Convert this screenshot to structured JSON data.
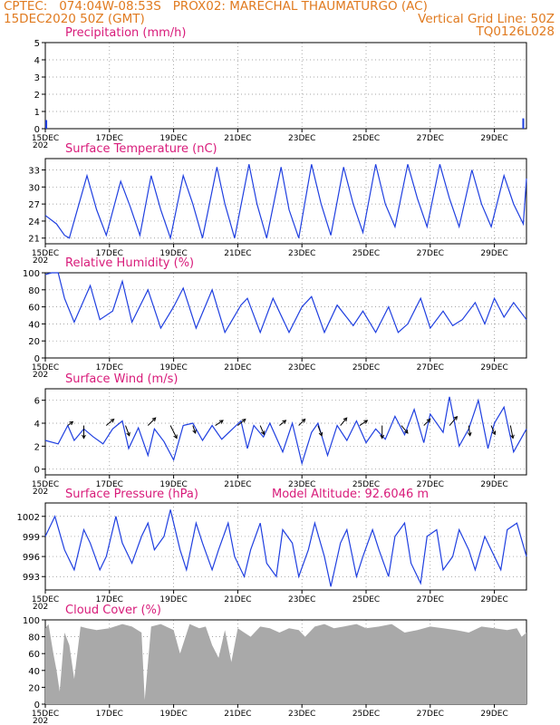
{
  "header": {
    "line1_left": "CPTEC:   074:04W-08:53S   PROX02: MARECHAL THAUMATURGO (AC)",
    "line2_left": "15DEC2020 50Z (GMT)",
    "line2_right": "Vertical Grid Line: 50Z",
    "line3_right": "TQ0126L028"
  },
  "colors": {
    "title": "#d81b7a",
    "header": "#e07a1f",
    "line": "#1f3fe0",
    "cloud": "#a9a9a9"
  },
  "x_axis": {
    "tick_labels": [
      "15DEC",
      "17DEC",
      "19DEC",
      "21DEC",
      "23DEC",
      "25DEC",
      "27DEC",
      "29DEC"
    ],
    "tick_days": [
      15,
      17,
      19,
      21,
      23,
      25,
      27,
      29
    ],
    "clipped_year_label": "202",
    "range_days": [
      15,
      30
    ]
  },
  "chart_data": [
    {
      "type": "bar",
      "title": "Precipitation (mm/h)",
      "ylim": [
        0,
        5
      ],
      "yticks": [
        0,
        1,
        2,
        3,
        4,
        5
      ],
      "series": [
        {
          "x": [
            15.03,
            29.9
          ],
          "values": [
            0.5,
            0.6
          ]
        }
      ]
    },
    {
      "type": "line",
      "title": "Surface Temperature (nC)",
      "ylim": [
        20,
        35
      ],
      "yticks": [
        21,
        24,
        27,
        30,
        33
      ],
      "series": [
        {
          "x": [
            15.0,
            15.35,
            15.6,
            15.75,
            16.3,
            16.6,
            16.9,
            17.35,
            17.65,
            17.95,
            18.3,
            18.6,
            18.9,
            19.3,
            19.6,
            19.9,
            20.35,
            20.6,
            20.9,
            21.35,
            21.6,
            21.9,
            22.35,
            22.6,
            22.9,
            23.3,
            23.6,
            23.9,
            24.3,
            24.6,
            24.9,
            25.3,
            25.6,
            25.9,
            26.3,
            26.6,
            26.9,
            27.3,
            27.6,
            27.9,
            28.3,
            28.6,
            28.9,
            29.3,
            29.6,
            29.9,
            30.0
          ],
          "values": [
            25,
            23.5,
            21.5,
            21,
            32,
            26,
            21.5,
            31,
            26.5,
            21.5,
            32,
            26,
            21,
            32,
            27,
            21,
            33.5,
            27,
            21,
            34,
            27,
            21,
            33.5,
            26,
            21,
            34,
            27,
            21.5,
            33.5,
            27,
            22,
            34,
            27,
            23,
            34,
            28,
            23,
            34,
            28,
            23,
            33,
            27,
            23,
            32,
            27,
            23.5,
            31.5
          ]
        }
      ]
    },
    {
      "type": "line",
      "title": "Relative Humidity (%)",
      "ylim": [
        0,
        100
      ],
      "yticks": [
        0,
        20,
        40,
        60,
        80,
        100
      ],
      "series": [
        {
          "x": [
            15.0,
            15.2,
            15.4,
            15.6,
            15.9,
            16.4,
            16.7,
            17.1,
            17.4,
            17.7,
            18.2,
            18.6,
            19.0,
            19.3,
            19.7,
            20.2,
            20.6,
            21.1,
            21.3,
            21.7,
            22.1,
            22.6,
            23.0,
            23.3,
            23.7,
            24.1,
            24.6,
            24.9,
            25.3,
            25.7,
            26.0,
            26.3,
            26.7,
            27.0,
            27.4,
            27.7,
            28.0,
            28.4,
            28.7,
            29.0,
            29.3,
            29.6,
            30.0
          ],
          "values": [
            98,
            100,
            100,
            70,
            42,
            85,
            45,
            55,
            90,
            42,
            80,
            35,
            60,
            82,
            35,
            80,
            30,
            62,
            70,
            30,
            70,
            30,
            60,
            72,
            30,
            62,
            38,
            55,
            30,
            60,
            30,
            40,
            70,
            35,
            55,
            38,
            45,
            65,
            40,
            70,
            48,
            65,
            45
          ]
        }
      ]
    },
    {
      "type": "line",
      "title": "Surface Wind (m/s)",
      "ylim": [
        -0.5,
        7
      ],
      "yticks": [
        0,
        2,
        4,
        6
      ],
      "series": [
        {
          "x": [
            15.0,
            15.4,
            15.7,
            15.9,
            16.2,
            16.5,
            16.8,
            17.1,
            17.4,
            17.6,
            17.9,
            18.2,
            18.4,
            18.7,
            19.0,
            19.3,
            19.6,
            19.9,
            20.2,
            20.5,
            20.8,
            21.1,
            21.3,
            21.5,
            21.8,
            22.0,
            22.4,
            22.7,
            23.0,
            23.3,
            23.5,
            23.8,
            24.1,
            24.4,
            24.7,
            25.0,
            25.3,
            25.6,
            25.9,
            26.2,
            26.5,
            26.8,
            27.0,
            27.4,
            27.6,
            27.9,
            28.2,
            28.5,
            28.8,
            29.0,
            29.3,
            29.6,
            30.0
          ],
          "values": [
            2.5,
            2.2,
            3.8,
            2.5,
            3.5,
            2.8,
            2.2,
            3.5,
            4.2,
            1.8,
            3.6,
            1.2,
            3.5,
            2.4,
            0.8,
            3.8,
            4.0,
            2.5,
            3.8,
            2.6,
            3.4,
            4.2,
            1.8,
            3.8,
            2.8,
            4.0,
            1.5,
            4.0,
            0.5,
            3.2,
            4.0,
            1.2,
            3.8,
            2.5,
            4.2,
            2.3,
            3.5,
            2.6,
            4.6,
            3.0,
            5.2,
            2.3,
            4.8,
            3.2,
            6.3,
            2.0,
            3.5,
            6.0,
            1.8,
            4.0,
            5.4,
            1.5,
            3.5
          ]
        }
      ],
      "vectors": {
        "x": [
          15.7,
          16.2,
          16.9,
          17.5,
          18.2,
          18.9,
          19.6,
          20.3,
          21.0,
          21.7,
          22.3,
          22.9,
          23.5,
          24.2,
          24.8,
          25.5,
          26.1,
          26.8,
          27.6,
          28.2,
          28.9,
          29.5
        ],
        "u": [
          0.4,
          0,
          0.6,
          0.3,
          0.6,
          0.5,
          0.2,
          0.6,
          0.6,
          0.3,
          0.5,
          0.5,
          0.3,
          0.5,
          0.6,
          0,
          0.5,
          0.5,
          0.6,
          0.1,
          0.3,
          0.2
        ],
        "v": [
          0.3,
          -1,
          0.5,
          -0.8,
          0.6,
          -1,
          -0.6,
          0.4,
          0.5,
          -0.7,
          0.4,
          0.5,
          -0.8,
          0.6,
          0.4,
          -1,
          -0.6,
          0.5,
          0.7,
          -0.8,
          -0.7,
          -1
        ]
      }
    },
    {
      "type": "line",
      "title": "Surface Pressure (hPa)",
      "annotation": "Model Altitude: 92.6046 m",
      "ylim": [
        991,
        1004
      ],
      "yticks": [
        993,
        996,
        999,
        1002
      ],
      "series": [
        {
          "x": [
            15.0,
            15.3,
            15.6,
            15.9,
            16.2,
            16.4,
            16.7,
            16.9,
            17.2,
            17.4,
            17.7,
            18.0,
            18.2,
            18.4,
            18.7,
            18.9,
            19.2,
            19.4,
            19.7,
            19.9,
            20.2,
            20.4,
            20.7,
            20.9,
            21.2,
            21.4,
            21.7,
            21.9,
            22.2,
            22.4,
            22.7,
            22.9,
            23.2,
            23.4,
            23.7,
            23.9,
            24.2,
            24.4,
            24.7,
            24.9,
            25.2,
            25.4,
            25.7,
            25.9,
            26.2,
            26.4,
            26.7,
            26.9,
            27.2,
            27.4,
            27.7,
            27.9,
            28.2,
            28.4,
            28.7,
            28.9,
            29.2,
            29.4,
            29.7,
            30.0
          ],
          "values": [
            999,
            1002,
            997,
            994,
            1000,
            998,
            994,
            996,
            1002,
            998,
            995,
            999,
            1001,
            997,
            999,
            1003,
            997,
            994,
            1001,
            998,
            994,
            997,
            1001,
            996,
            993,
            997,
            1001,
            995,
            993,
            1000,
            998,
            993,
            997,
            1001,
            996,
            991.5,
            998,
            1000,
            993,
            996,
            1000,
            997,
            993,
            999,
            1001,
            995,
            992,
            999,
            1000,
            994,
            996,
            1000,
            997,
            994,
            999,
            997,
            994,
            1000,
            1001,
            996
          ]
        }
      ]
    },
    {
      "type": "area",
      "title": "Cloud Cover (%)",
      "ylim": [
        0,
        100
      ],
      "yticks": [
        0,
        20,
        40,
        60,
        80,
        100
      ],
      "series": [
        {
          "x": [
            15.0,
            15.1,
            15.25,
            15.35,
            15.45,
            15.6,
            15.75,
            15.9,
            16.1,
            16.3,
            16.6,
            17.0,
            17.4,
            17.7,
            18.0,
            18.1,
            18.3,
            18.6,
            19.0,
            19.2,
            19.5,
            19.8,
            20.0,
            20.2,
            20.4,
            20.6,
            20.8,
            21.0,
            21.2,
            21.4,
            21.7,
            22.0,
            22.3,
            22.6,
            22.9,
            23.1,
            23.4,
            23.7,
            24.0,
            24.3,
            24.7,
            25.0,
            25.4,
            25.8,
            26.2,
            26.6,
            27.0,
            27.4,
            27.8,
            28.2,
            28.6,
            29.0,
            29.4,
            29.7,
            29.85,
            30.0
          ],
          "values": [
            90,
            95,
            60,
            40,
            15,
            85,
            70,
            30,
            92,
            90,
            88,
            90,
            95,
            92,
            85,
            5,
            92,
            95,
            88,
            60,
            95,
            90,
            92,
            70,
            55,
            88,
            50,
            90,
            85,
            80,
            92,
            90,
            85,
            90,
            88,
            80,
            92,
            95,
            90,
            92,
            95,
            90,
            92,
            95,
            85,
            88,
            92,
            90,
            88,
            85,
            92,
            90,
            88,
            90,
            80,
            85
          ]
        }
      ]
    }
  ]
}
